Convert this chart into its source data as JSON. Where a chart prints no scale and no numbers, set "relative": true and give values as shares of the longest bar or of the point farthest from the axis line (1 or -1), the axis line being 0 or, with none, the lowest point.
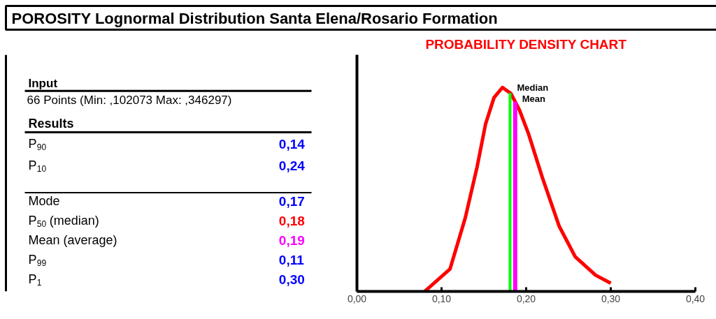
{
  "chart_data": [
    {
      "type": "other",
      "title": "POROSITY Lognormal Distribution Santa Elena/Rosario Formation",
      "annotations": [
        "Input",
        "66 Points  (Min: ,102073   Max: ,346297)",
        "Results"
      ],
      "categories": [
        "P$_{90}$",
        "P$_{10}$",
        "Mode",
        "P$_{50}$ (median)",
        "Mean (average)",
        "P$_{99}$",
        "P$_{1}$"
      ],
      "value_labels": [
        "0,14",
        "0,24",
        "0,17",
        "0,18",
        "0,19",
        "0,11",
        "0,30"
      ],
      "colors": [
        "#0000ff",
        "#0000ff",
        "#0000ff",
        "#ff0000",
        "#ff00ff",
        "#0000ff",
        "#0000ff"
      ]
    },
    {
      "type": "line",
      "title": "PROBABILITY DENSITY CHART",
      "relative": true,
      "x": [
        0.08,
        0.11,
        0.128,
        0.142,
        0.152,
        0.162,
        0.172,
        0.182,
        0.192,
        0.203,
        0.219,
        0.239,
        0.258,
        0.282,
        0.3
      ],
      "series": [
        {
          "color": "#ff0000",
          "values": [
            0,
            0.11,
            0.36,
            0.61,
            0.82,
            0.95,
            1.0,
            0.97,
            0.89,
            0.77,
            0.56,
            0.32,
            0.17,
            0.08,
            0.04
          ]
        }
      ],
      "xlim": [
        0,
        0.4
      ],
      "xticks": [
        {
          "value": 0,
          "label": "0,00"
        },
        {
          "value": 0.1,
          "label": "0,10"
        },
        {
          "value": 0.2,
          "label": "0,20"
        },
        {
          "value": 0.3,
          "label": "0,30"
        },
        {
          "value": 0.4,
          "label": "0,40"
        }
      ],
      "ref_lines": [
        {
          "axis": "x",
          "value": 0.181,
          "label": "Median",
          "color": "#00ff00"
        },
        {
          "axis": "x",
          "value": 0.187,
          "label": "Mean",
          "color": "#ff00ff"
        }
      ],
      "grid": false,
      "marker": "none",
      "line_style": "solid"
    }
  ]
}
